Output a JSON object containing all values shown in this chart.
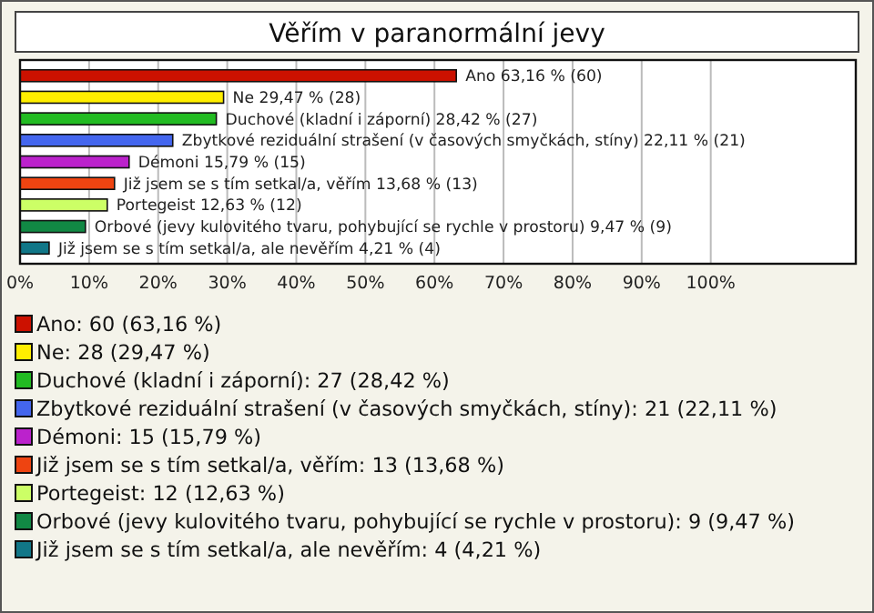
{
  "chart_data": {
    "type": "bar",
    "orientation": "horizontal",
    "title": "Věřím v paranormální jevy",
    "categories": [
      null,
      null,
      null,
      null,
      null,
      null,
      null,
      null,
      null
    ],
    "xlim": [
      0,
      121
    ],
    "xticks": [
      {
        "value": 0,
        "label": "0%"
      },
      {
        "value": 10,
        "label": "10%"
      },
      {
        "value": 20,
        "label": "20%"
      },
      {
        "value": 30,
        "label": "30%"
      },
      {
        "value": 40,
        "label": "40%"
      },
      {
        "value": 50,
        "label": "50%"
      },
      {
        "value": 60,
        "label": "60%"
      },
      {
        "value": 70,
        "label": "70%"
      },
      {
        "value": 80,
        "label": "80%"
      },
      {
        "value": 90,
        "label": "90%"
      },
      {
        "value": 100,
        "label": "100%"
      }
    ],
    "grid": "x",
    "legend": "bottom",
    "series": [
      {
        "name": "Ano: 60 (63,16 %)",
        "color": "#cc1100",
        "values": [
          63.16,
          null,
          null,
          null,
          null,
          null,
          null,
          null,
          null
        ],
        "value_labels": [
          "Ano 63,16 % (60)",
          null,
          null,
          null,
          null,
          null,
          null,
          null,
          null
        ]
      },
      {
        "name": "Ne: 28 (29,47 %)",
        "color": "#ffee00",
        "values": [
          null,
          29.47,
          null,
          null,
          null,
          null,
          null,
          null,
          null
        ],
        "value_labels": [
          null,
          "Ne 29,47 % (28)",
          null,
          null,
          null,
          null,
          null,
          null,
          null
        ]
      },
      {
        "name": "Duchové (kladní i záporní): 27 (28,42 %)",
        "color": "#22bb22",
        "values": [
          null,
          null,
          28.42,
          null,
          null,
          null,
          null,
          null,
          null
        ],
        "value_labels": [
          null,
          null,
          "Duchové (kladní i záporní) 28,42 % (27)",
          null,
          null,
          null,
          null,
          null,
          null
        ]
      },
      {
        "name": "Zbytkové reziduální strašení (v časových smyčkách, stíny): 21 (22,11 %)",
        "color": "#4466ee",
        "values": [
          null,
          null,
          null,
          22.11,
          null,
          null,
          null,
          null,
          null
        ],
        "value_labels": [
          null,
          null,
          null,
          "Zbytkové reziduální strašení (v časových smyčkách, stíny) 22,11 % (21)",
          null,
          null,
          null,
          null,
          null
        ]
      },
      {
        "name": "Démoni: 15 (15,79 %)",
        "color": "#bb22cc",
        "values": [
          null,
          null,
          null,
          null,
          15.79,
          null,
          null,
          null,
          null
        ],
        "value_labels": [
          null,
          null,
          null,
          null,
          "Démoni 15,79 % (15)",
          null,
          null,
          null,
          null
        ]
      },
      {
        "name": "Již jsem se s tím setkal/a, věřím: 13 (13,68 %)",
        "color": "#ee4411",
        "values": [
          null,
          null,
          null,
          null,
          null,
          13.68,
          null,
          null,
          null
        ],
        "value_labels": [
          null,
          null,
          null,
          null,
          null,
          "Již jsem se s tím setkal/a, věřím 13,68 % (13)",
          null,
          null,
          null
        ]
      },
      {
        "name": "Portegeist: 12 (12,63 %)",
        "color": "#ccff66",
        "values": [
          null,
          null,
          null,
          null,
          null,
          null,
          12.63,
          null,
          null
        ],
        "value_labels": [
          null,
          null,
          null,
          null,
          null,
          null,
          "Portegeist 12,63 % (12)",
          null,
          null
        ]
      },
      {
        "name": "Orbové (jevy kulovitého tvaru, pohybující se rychle v prostoru): 9 (9,47 %)",
        "color": "#118844",
        "values": [
          null,
          null,
          null,
          null,
          null,
          null,
          null,
          9.47,
          null
        ],
        "value_labels": [
          null,
          null,
          null,
          null,
          null,
          null,
          null,
          "Orbové (jevy kulovitého tvaru, pohybující se rychle v prostoru) 9,47 % (9)",
          null
        ]
      },
      {
        "name": "Již jsem se s tím setkal/a, ale nevěřím: 4 (4,21 %)",
        "color": "#117788",
        "values": [
          null,
          null,
          null,
          null,
          null,
          null,
          null,
          null,
          4.21
        ],
        "value_labels": [
          null,
          null,
          null,
          null,
          null,
          null,
          null,
          null,
          "Již jsem se s tím setkal/a, ale nevěřím 4,21 % (4)"
        ]
      }
    ]
  }
}
